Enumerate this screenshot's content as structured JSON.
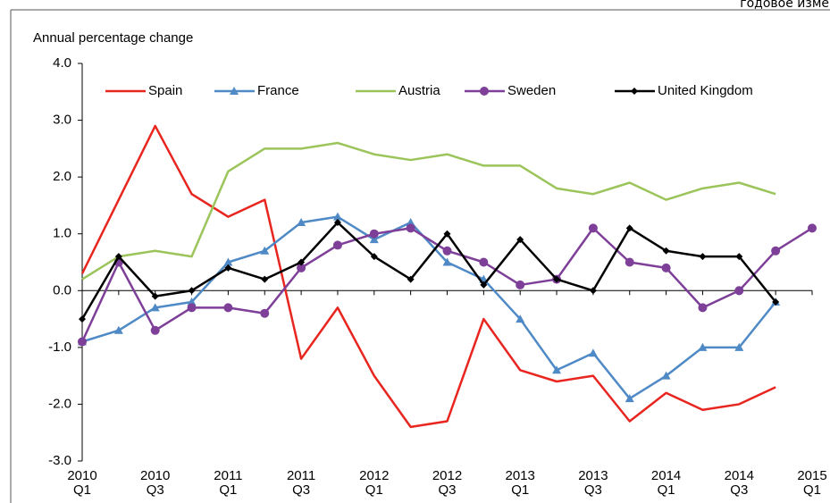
{
  "header_note": "годовое изме",
  "chart_data": {
    "type": "line",
    "y_axis_label": "Annual percentage change",
    "categories": [
      "2010 Q1",
      null,
      "2010 Q3",
      null,
      "2011 Q1",
      null,
      "2011 Q3",
      null,
      "2012 Q1",
      null,
      "2012 Q3",
      null,
      "2013 Q1",
      null,
      "2013 Q3",
      null,
      "2014 Q1",
      null,
      "2014 Q3",
      null,
      "2015 Q1"
    ],
    "ylim": [
      -3,
      4
    ],
    "yticks": [
      {
        "value": -3,
        "label": "-3.0"
      },
      {
        "value": -2,
        "label": "-2.0"
      },
      {
        "value": -1,
        "label": "-1.0"
      },
      {
        "value": 0,
        "label": "0.0"
      },
      {
        "value": 1,
        "label": "1.0"
      },
      {
        "value": 2,
        "label": "2.0"
      },
      {
        "value": 3,
        "label": "3.0"
      },
      {
        "value": 4,
        "label": "4.0"
      }
    ],
    "grid": false,
    "legend": "top",
    "series": [
      {
        "name": "Spain",
        "color": "#e8251f",
        "marker": "none",
        "values": [
          0.3,
          1.6,
          2.9,
          1.7,
          1.3,
          1.6,
          -1.2,
          -0.3,
          -1.5,
          -2.4,
          -2.3,
          -0.5,
          -1.4,
          -1.6,
          -1.5,
          -2.3,
          -1.8,
          -2.1,
          -2.0,
          -1.7,
          null
        ]
      },
      {
        "name": "France",
        "color": "#4f8ac6",
        "marker": "triangle",
        "values": [
          -0.9,
          -0.7,
          -0.3,
          -0.2,
          0.5,
          0.7,
          1.2,
          1.3,
          0.9,
          1.2,
          0.5,
          0.2,
          -0.5,
          -1.4,
          -1.1,
          -1.9,
          -1.5,
          -1.0,
          -1.0,
          -0.2,
          null
        ]
      },
      {
        "name": "Austria",
        "color": "#9bc45a",
        "marker": "none",
        "values": [
          0.2,
          0.6,
          0.7,
          0.6,
          2.1,
          2.5,
          2.5,
          2.6,
          2.4,
          2.3,
          2.4,
          2.2,
          2.2,
          1.8,
          1.7,
          1.9,
          1.6,
          1.8,
          1.9,
          1.7,
          null
        ]
      },
      {
        "name": "Sweden",
        "color": "#7e3f98",
        "marker": "circle",
        "values": [
          -0.9,
          0.5,
          -0.7,
          -0.3,
          -0.3,
          -0.4,
          0.4,
          0.8,
          1.0,
          1.1,
          0.7,
          0.5,
          0.1,
          0.2,
          1.1,
          0.5,
          0.4,
          -0.3,
          0.0,
          0.7,
          1.1
        ]
      },
      {
        "name": "United Kingdom",
        "color": "#000000",
        "marker": "diamond",
        "values": [
          -0.5,
          0.6,
          -0.1,
          0.0,
          0.4,
          0.2,
          0.5,
          1.2,
          0.6,
          0.2,
          1.0,
          0.1,
          0.9,
          0.2,
          0.0,
          1.1,
          0.7,
          0.6,
          0.6,
          -0.2,
          null
        ]
      }
    ]
  }
}
